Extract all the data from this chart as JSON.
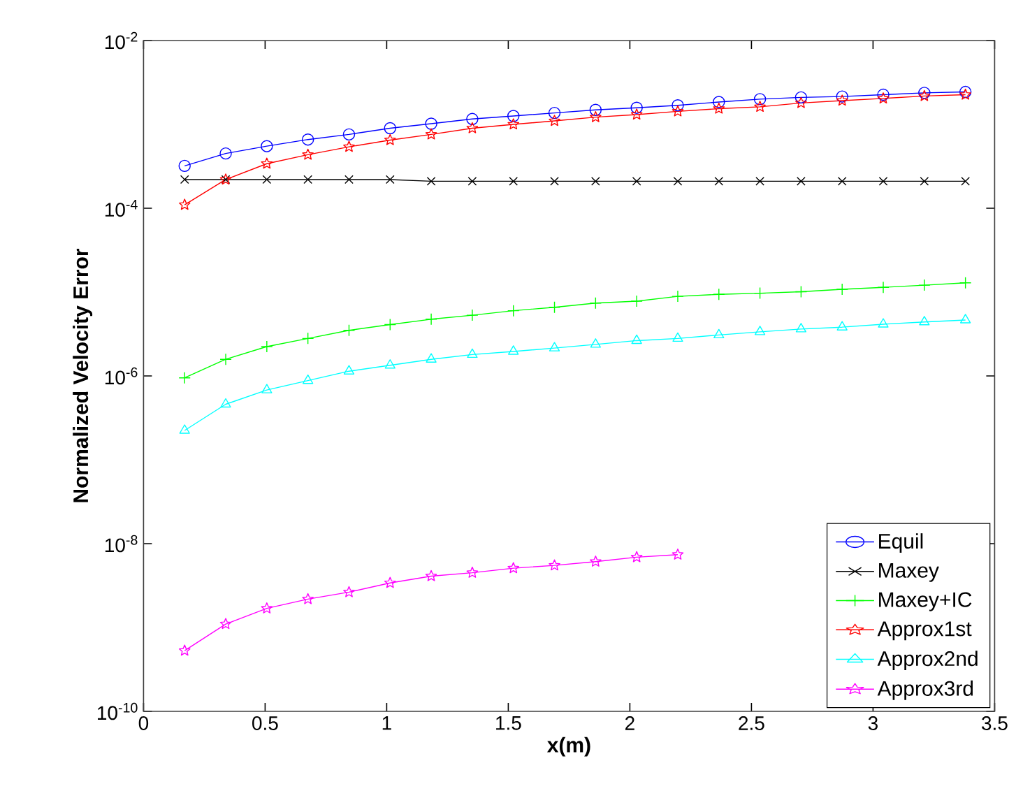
{
  "chart_data": {
    "type": "line",
    "xlabel": "x(m)",
    "ylabel": "Normalized Velocity Error",
    "x": [
      0.169,
      0.338,
      0.507,
      0.676,
      0.845,
      1.014,
      1.183,
      1.352,
      1.521,
      1.69,
      1.859,
      2.028,
      2.197,
      2.366,
      2.535,
      2.704,
      2.873,
      3.042,
      3.211,
      3.38
    ],
    "series": [
      {
        "name": "Equil",
        "color": "#0000ff",
        "marker": "circle",
        "values": [
          0.00032,
          0.00045,
          0.00055,
          0.00066,
          0.00076,
          0.0009,
          0.00102,
          0.00116,
          0.00126,
          0.00137,
          0.00149,
          0.00158,
          0.00169,
          0.00185,
          0.002,
          0.0021,
          0.00215,
          0.00226,
          0.00238,
          0.00244
        ]
      },
      {
        "name": "Maxey",
        "color": "#000000",
        "marker": "cross",
        "values": [
          0.00022,
          0.00022,
          0.00022,
          0.00022,
          0.00022,
          0.00022,
          0.00021,
          0.00021,
          0.00021,
          0.00021,
          0.00021,
          0.00021,
          0.00021,
          0.00021,
          0.00021,
          0.00021,
          0.00021,
          0.00021,
          0.00021,
          0.00021
        ]
      },
      {
        "name": "Maxey+IC",
        "color": "#00ff00",
        "marker": "plus",
        "values": [
          9.5e-07,
          1.58e-06,
          2.24e-06,
          2.8e-06,
          3.5e-06,
          4.1e-06,
          4.75e-06,
          5.3e-06,
          6e-06,
          6.6e-06,
          7.4e-06,
          7.8e-06,
          8.9e-06,
          9.4e-06,
          9.7e-06,
          1.01e-05,
          1.08e-05,
          1.14e-05,
          1.21e-05,
          1.29e-05
        ]
      },
      {
        "name": "Approx1st",
        "color": "#ff0000",
        "marker": "star",
        "values": [
          0.00011,
          0.00022,
          0.00034,
          0.000435,
          0.00054,
          0.00065,
          0.00076,
          0.0009,
          0.001,
          0.0011,
          0.00122,
          0.00131,
          0.00143,
          0.00154,
          0.00162,
          0.0018,
          0.00192,
          0.00204,
          0.00218,
          0.00226
        ]
      },
      {
        "name": "Approx2nd",
        "color": "#00ffff",
        "marker": "triangle",
        "values": [
          2.24e-07,
          4.6e-07,
          6.8e-07,
          8.8e-07,
          1.14e-06,
          1.34e-06,
          1.58e-06,
          1.8e-06,
          1.96e-06,
          2.15e-06,
          2.38e-06,
          2.64e-06,
          2.8e-06,
          3.08e-06,
          3.36e-06,
          3.63e-06,
          3.82e-06,
          4.14e-06,
          4.4e-06,
          4.65e-06
        ]
      },
      {
        "name": "Approx3rd",
        "color": "#ff00ff",
        "marker": "star",
        "values": [
          5.3e-10,
          1.1e-09,
          1.69e-09,
          2.18e-09,
          2.64e-09,
          3.4e-09,
          4.1e-09,
          4.5e-09,
          5.1e-09,
          5.5e-09,
          6.1e-09,
          6.9e-09,
          7.4e-09,
          null,
          null,
          null,
          null,
          null,
          null,
          null
        ]
      }
    ],
    "xlim": [
      0,
      3.5
    ],
    "xticks": [
      0,
      0.5,
      1,
      1.5,
      2,
      2.5,
      3,
      3.5
    ],
    "ylim": [
      1e-10,
      0.01
    ],
    "yticks": [
      {
        "value": 1e-10,
        "label": "10$^{-10}$"
      },
      {
        "value": 1e-08,
        "label": "10$^{-8}$"
      },
      {
        "value": 1e-06,
        "label": "10$^{-6}$"
      },
      {
        "value": 0.0001,
        "label": "10$^{-4}$"
      },
      {
        "value": 0.01,
        "label": "10$^{-2}$"
      }
    ],
    "log": "y",
    "grid": false,
    "legend": "bottom right",
    "line_style": "solid"
  }
}
